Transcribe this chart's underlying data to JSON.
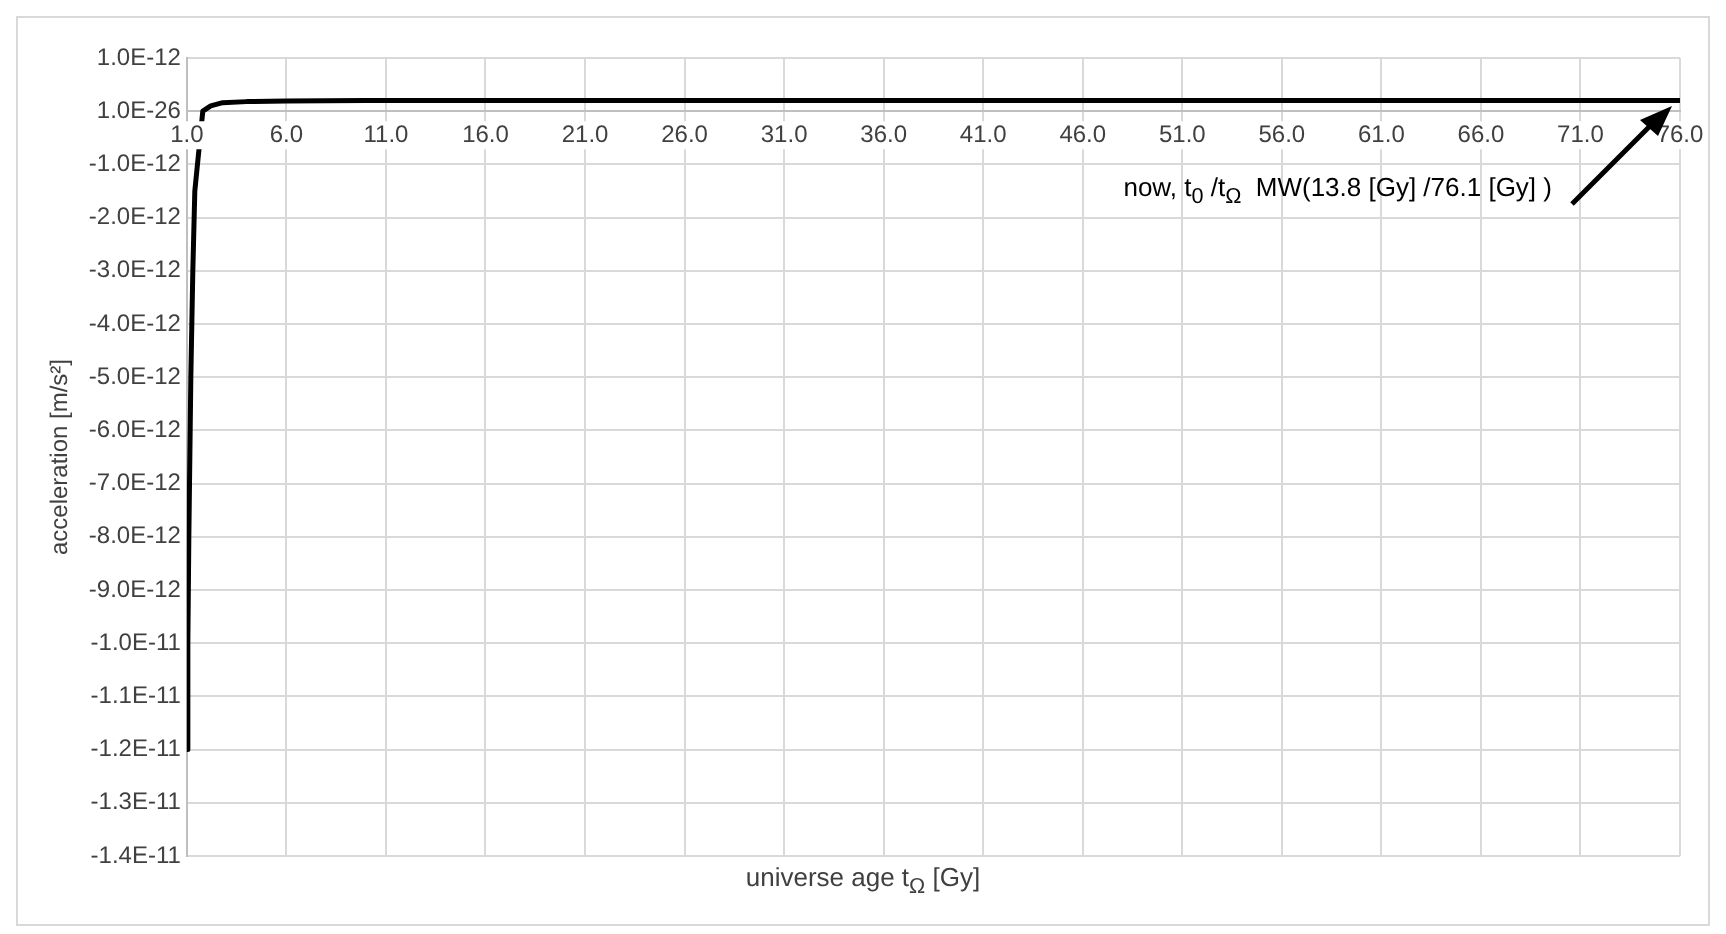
{
  "chart_data": {
    "type": "line",
    "xlabel": "universe age t$_{Ω}$ [Gy]",
    "ylabel": "acceleration [m/s²]",
    "series": [
      {
        "color": "#000000",
        "x": [
          1.0,
          1.05,
          1.1,
          1.2,
          1.3,
          1.4,
          1.8,
          2.2,
          2.8,
          4,
          6,
          10,
          20,
          40,
          60,
          76
        ],
        "values": [
          -1.2e-11,
          -1e-11,
          -8e-12,
          -5e-12,
          -3e-12,
          -1.5e-12,
          0,
          1e-13,
          1.6e-13,
          1.8e-13,
          1.9e-13,
          2e-13,
          2e-13,
          2e-13,
          2e-13,
          2e-13
        ]
      }
    ],
    "xlim": [
      1,
      76
    ],
    "xticks": [
      {
        "value": 1,
        "label": "1.0"
      },
      {
        "value": 6,
        "label": "6.0"
      },
      {
        "value": 11,
        "label": "11.0"
      },
      {
        "value": 16,
        "label": "16.0"
      },
      {
        "value": 21,
        "label": "21.0"
      },
      {
        "value": 26,
        "label": "26.0"
      },
      {
        "value": 31,
        "label": "31.0"
      },
      {
        "value": 36,
        "label": "36.0"
      },
      {
        "value": 41,
        "label": "41.0"
      },
      {
        "value": 46,
        "label": "46.0"
      },
      {
        "value": 51,
        "label": "51.0"
      },
      {
        "value": 56,
        "label": "56.0"
      },
      {
        "value": 61,
        "label": "61.0"
      },
      {
        "value": 66,
        "label": "66.0"
      },
      {
        "value": 71,
        "label": "71.0"
      },
      {
        "value": 76,
        "label": "76.0"
      }
    ],
    "ylim": [
      -1.4e-11,
      1e-12
    ],
    "yticks": [
      {
        "value": 1e-12,
        "label": "1.0E-12"
      },
      {
        "value": 0,
        "label": "1.0E-26"
      },
      {
        "value": -1e-12,
        "label": "-1.0E-12"
      },
      {
        "value": -2e-12,
        "label": "-2.0E-12"
      },
      {
        "value": -3e-12,
        "label": "-3.0E-12"
      },
      {
        "value": -4e-12,
        "label": "-4.0E-12"
      },
      {
        "value": -5e-12,
        "label": "-5.0E-12"
      },
      {
        "value": -6e-12,
        "label": "-6.0E-12"
      },
      {
        "value": -7e-12,
        "label": "-7.0E-12"
      },
      {
        "value": -8e-12,
        "label": "-8.0E-12"
      },
      {
        "value": -9e-12,
        "label": "-9.0E-12"
      },
      {
        "value": -1e-11,
        "label": "-1.0E-11"
      },
      {
        "value": -1.1e-11,
        "label": "-1.1E-11"
      },
      {
        "value": -1.2e-11,
        "label": "-1.2E-11"
      },
      {
        "value": -1.3e-11,
        "label": "-1.3E-11"
      },
      {
        "value": -1.4e-11,
        "label": "-1.4E-11"
      }
    ],
    "grid": true,
    "legend": false,
    "marker": "none",
    "line_style": "solid",
    "annotations": [
      "now, t$_{0}$ /t$_{Ω}$  MW(13.8 [Gy] /76.1 [Gy] )"
    ]
  }
}
